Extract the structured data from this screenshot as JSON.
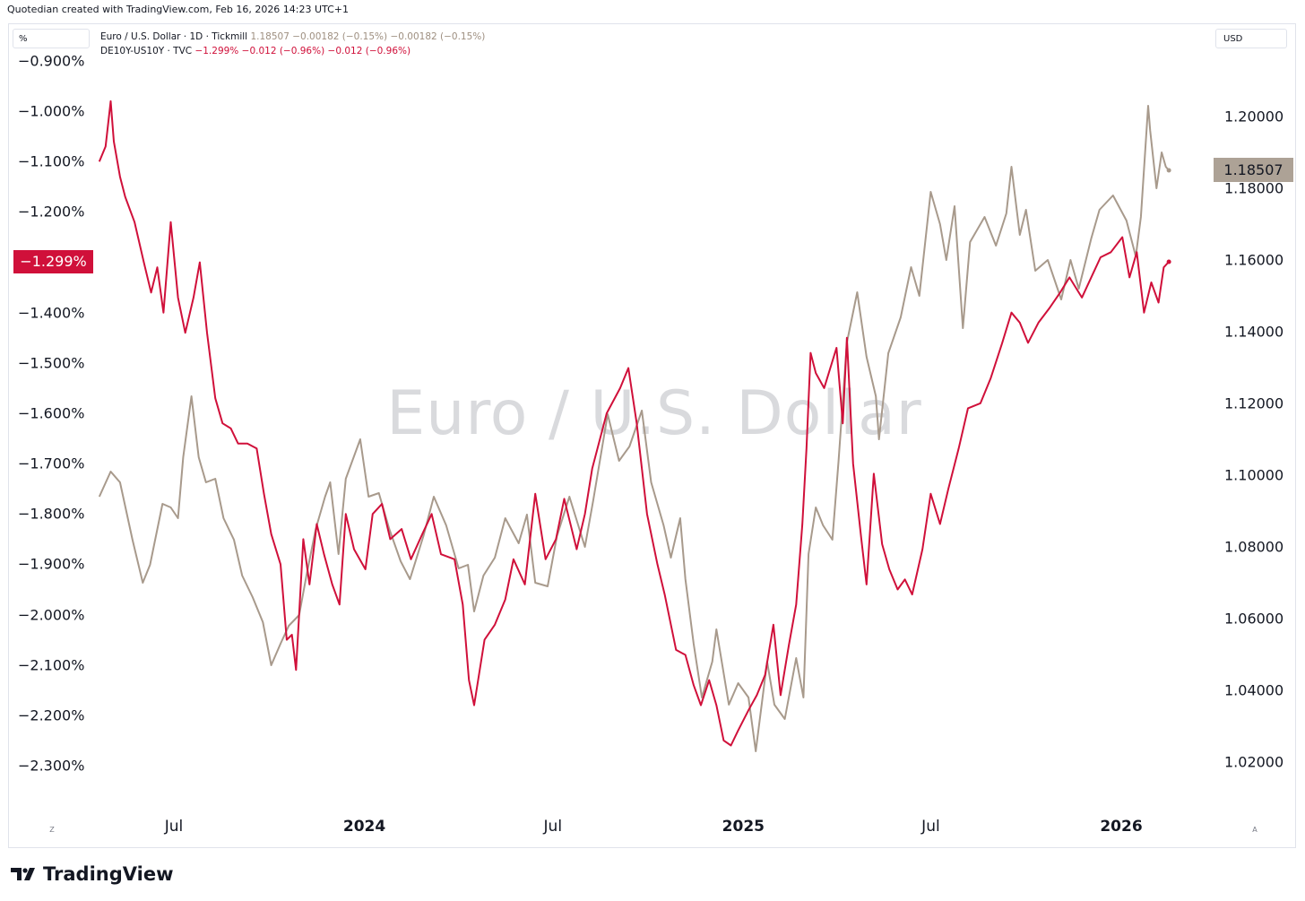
{
  "header": {
    "creator": "Quotedian created with TradingView.com, Feb 16, 2026 14:23 UTC+1"
  },
  "chart_data": {
    "type": "line",
    "watermark": "Euro / U.S. Dollar",
    "left_axis": {
      "unit_label": "%",
      "ticks": [
        "−0.900%",
        "−1.000%",
        "−1.100%",
        "−1.200%",
        "−1.400%",
        "−1.500%",
        "−1.600%",
        "−1.700%",
        "−1.800%",
        "−1.900%",
        "−2.000%",
        "−2.100%",
        "−2.200%",
        "−2.300%"
      ],
      "tick_values": [
        -0.9,
        -1.0,
        -1.1,
        -1.2,
        -1.4,
        -1.5,
        -1.6,
        -1.7,
        -1.8,
        -1.9,
        -2.0,
        -2.1,
        -2.2,
        -2.3
      ],
      "range": [
        -2.35,
        -0.87
      ]
    },
    "right_axis": {
      "unit_label": "USD",
      "ticks": [
        "1.20000",
        "1.18000",
        "1.16000",
        "1.14000",
        "1.12000",
        "1.10000",
        "1.08000",
        "1.06000",
        "1.04000",
        "1.02000"
      ],
      "tick_values": [
        1.2,
        1.18,
        1.16,
        1.14,
        1.12,
        1.1,
        1.08,
        1.06,
        1.04,
        1.02
      ],
      "range": [
        1.0135,
        1.2327
      ]
    },
    "x_axis": {
      "ticks": [
        {
          "label": "Jul",
          "date": "2023-07-01",
          "bold": false
        },
        {
          "label": "2024",
          "date": "2024-01-01",
          "bold": true
        },
        {
          "label": "Jul",
          "date": "2024-07-01",
          "bold": false
        },
        {
          "label": "2025",
          "date": "2025-01-01",
          "bold": true
        },
        {
          "label": "Jul",
          "date": "2025-07-01",
          "bold": false
        },
        {
          "label": "2026",
          "date": "2026-01-01",
          "bold": true
        }
      ],
      "range": [
        "2023-04-20",
        "2026-04-20"
      ]
    },
    "series": [
      {
        "name": "Euro / U.S. Dollar · 1D · Tickmill",
        "axis": "right",
        "color": "#a89a8c",
        "last_value": "1.18507",
        "change": "−0.00182 (−0.15%)",
        "change2": "−0.00182 (−0.15%)",
        "points": [
          [
            "2023-04-20",
            1.094
          ],
          [
            "2023-05-01",
            1.101
          ],
          [
            "2023-05-10",
            1.098
          ],
          [
            "2023-05-22",
            1.082
          ],
          [
            "2023-06-01",
            1.07
          ],
          [
            "2023-06-08",
            1.075
          ],
          [
            "2023-06-20",
            1.092
          ],
          [
            "2023-06-28",
            1.091
          ],
          [
            "2023-07-05",
            1.088
          ],
          [
            "2023-07-10",
            1.105
          ],
          [
            "2023-07-18",
            1.122
          ],
          [
            "2023-07-25",
            1.105
          ],
          [
            "2023-08-01",
            1.098
          ],
          [
            "2023-08-10",
            1.099
          ],
          [
            "2023-08-18",
            1.088
          ],
          [
            "2023-08-28",
            1.082
          ],
          [
            "2023-09-05",
            1.072
          ],
          [
            "2023-09-15",
            1.066
          ],
          [
            "2023-09-25",
            1.059
          ],
          [
            "2023-10-03",
            1.047
          ],
          [
            "2023-10-12",
            1.053
          ],
          [
            "2023-10-20",
            1.058
          ],
          [
            "2023-10-30",
            1.061
          ],
          [
            "2023-11-06",
            1.072
          ],
          [
            "2023-11-15",
            1.085
          ],
          [
            "2023-11-24",
            1.094
          ],
          [
            "2023-11-29",
            1.098
          ],
          [
            "2023-12-07",
            1.078
          ],
          [
            "2023-12-14",
            1.099
          ],
          [
            "2023-12-28",
            1.11
          ],
          [
            "2024-01-05",
            1.094
          ],
          [
            "2024-01-15",
            1.095
          ],
          [
            "2024-01-25",
            1.085
          ],
          [
            "2024-02-05",
            1.076
          ],
          [
            "2024-02-14",
            1.071
          ],
          [
            "2024-02-27",
            1.083
          ],
          [
            "2024-03-08",
            1.094
          ],
          [
            "2024-03-20",
            1.086
          ],
          [
            "2024-04-01",
            1.074
          ],
          [
            "2024-04-10",
            1.075
          ],
          [
            "2024-04-16",
            1.062
          ],
          [
            "2024-04-25",
            1.072
          ],
          [
            "2024-05-06",
            1.077
          ],
          [
            "2024-05-16",
            1.088
          ],
          [
            "2024-05-29",
            1.081
          ],
          [
            "2024-06-06",
            1.089
          ],
          [
            "2024-06-14",
            1.07
          ],
          [
            "2024-06-26",
            1.069
          ],
          [
            "2024-07-05",
            1.083
          ],
          [
            "2024-07-17",
            1.094
          ],
          [
            "2024-08-01",
            1.08
          ],
          [
            "2024-08-09",
            1.093
          ],
          [
            "2024-08-23",
            1.117
          ],
          [
            "2024-09-03",
            1.104
          ],
          [
            "2024-09-13",
            1.108
          ],
          [
            "2024-09-25",
            1.118
          ],
          [
            "2024-10-04",
            1.098
          ],
          [
            "2024-10-16",
            1.086
          ],
          [
            "2024-10-23",
            1.077
          ],
          [
            "2024-11-01",
            1.088
          ],
          [
            "2024-11-06",
            1.071
          ],
          [
            "2024-11-14",
            1.053
          ],
          [
            "2024-11-22",
            1.038
          ],
          [
            "2024-12-02",
            1.048
          ],
          [
            "2024-12-06",
            1.057
          ],
          [
            "2024-12-18",
            1.036
          ],
          [
            "2024-12-27",
            1.042
          ],
          [
            "2025-01-06",
            1.038
          ],
          [
            "2025-01-13",
            1.023
          ],
          [
            "2025-01-24",
            1.048
          ],
          [
            "2025-01-31",
            1.036
          ],
          [
            "2025-02-10",
            1.032
          ],
          [
            "2025-02-21",
            1.049
          ],
          [
            "2025-02-28",
            1.038
          ],
          [
            "2025-03-05",
            1.078
          ],
          [
            "2025-03-12",
            1.091
          ],
          [
            "2025-03-19",
            1.086
          ],
          [
            "2025-03-28",
            1.082
          ],
          [
            "2025-04-03",
            1.104
          ],
          [
            "2025-04-11",
            1.137
          ],
          [
            "2025-04-21",
            1.151
          ],
          [
            "2025-04-30",
            1.133
          ],
          [
            "2025-05-09",
            1.122
          ],
          [
            "2025-05-12",
            1.11
          ],
          [
            "2025-05-21",
            1.134
          ],
          [
            "2025-06-02",
            1.144
          ],
          [
            "2025-06-12",
            1.158
          ],
          [
            "2025-06-20",
            1.15
          ],
          [
            "2025-07-01",
            1.179
          ],
          [
            "2025-07-10",
            1.17
          ],
          [
            "2025-07-16",
            1.16
          ],
          [
            "2025-07-24",
            1.175
          ],
          [
            "2025-08-01",
            1.141
          ],
          [
            "2025-08-08",
            1.165
          ],
          [
            "2025-08-22",
            1.172
          ],
          [
            "2025-09-02",
            1.164
          ],
          [
            "2025-09-12",
            1.173
          ],
          [
            "2025-09-17",
            1.186
          ],
          [
            "2025-09-25",
            1.167
          ],
          [
            "2025-10-01",
            1.174
          ],
          [
            "2025-10-10",
            1.157
          ],
          [
            "2025-10-22",
            1.16
          ],
          [
            "2025-11-04",
            1.149
          ],
          [
            "2025-11-13",
            1.16
          ],
          [
            "2025-11-21",
            1.152
          ],
          [
            "2025-12-03",
            1.166
          ],
          [
            "2025-12-11",
            1.174
          ],
          [
            "2025-12-24",
            1.178
          ],
          [
            "2026-01-06",
            1.171
          ],
          [
            "2026-01-15",
            1.161
          ],
          [
            "2026-01-20",
            1.172
          ],
          [
            "2026-01-27",
            1.203
          ],
          [
            "2026-01-29",
            1.196
          ],
          [
            "2026-02-04",
            1.18
          ],
          [
            "2026-02-09",
            1.19
          ],
          [
            "2026-02-13",
            1.186
          ],
          [
            "2026-02-16",
            1.185
          ]
        ]
      },
      {
        "name": "DE10Y-US10Y · TVC",
        "axis": "left",
        "color": "#d0103a",
        "last_value": "−1.299%",
        "change": "−0.012 (−0.96%)",
        "change2": "−0.012 (−0.96%)",
        "points": [
          [
            "2023-04-20",
            -1.1
          ],
          [
            "2023-04-26",
            -1.07
          ],
          [
            "2023-05-01",
            -0.98
          ],
          [
            "2023-05-04",
            -1.06
          ],
          [
            "2023-05-10",
            -1.13
          ],
          [
            "2023-05-15",
            -1.17
          ],
          [
            "2023-05-24",
            -1.22
          ],
          [
            "2023-06-02",
            -1.3
          ],
          [
            "2023-06-09",
            -1.36
          ],
          [
            "2023-06-15",
            -1.31
          ],
          [
            "2023-06-21",
            -1.4
          ],
          [
            "2023-06-28",
            -1.22
          ],
          [
            "2023-07-05",
            -1.37
          ],
          [
            "2023-07-12",
            -1.44
          ],
          [
            "2023-07-20",
            -1.37
          ],
          [
            "2023-07-26",
            -1.3
          ],
          [
            "2023-08-02",
            -1.44
          ],
          [
            "2023-08-10",
            -1.57
          ],
          [
            "2023-08-17",
            -1.62
          ],
          [
            "2023-08-25",
            -1.63
          ],
          [
            "2023-09-01",
            -1.66
          ],
          [
            "2023-09-10",
            -1.66
          ],
          [
            "2023-09-19",
            -1.67
          ],
          [
            "2023-09-26",
            -1.76
          ],
          [
            "2023-10-03",
            -1.84
          ],
          [
            "2023-10-12",
            -1.9
          ],
          [
            "2023-10-18",
            -2.05
          ],
          [
            "2023-10-23",
            -2.04
          ],
          [
            "2023-10-27",
            -2.11
          ],
          [
            "2023-11-03",
            -1.85
          ],
          [
            "2023-11-09",
            -1.94
          ],
          [
            "2023-11-16",
            -1.82
          ],
          [
            "2023-11-23",
            -1.88
          ],
          [
            "2023-12-01",
            -1.94
          ],
          [
            "2023-12-08",
            -1.98
          ],
          [
            "2023-12-14",
            -1.8
          ],
          [
            "2023-12-22",
            -1.87
          ],
          [
            "2024-01-02",
            -1.91
          ],
          [
            "2024-01-09",
            -1.8
          ],
          [
            "2024-01-18",
            -1.78
          ],
          [
            "2024-01-26",
            -1.85
          ],
          [
            "2024-02-06",
            -1.83
          ],
          [
            "2024-02-15",
            -1.89
          ],
          [
            "2024-02-26",
            -1.84
          ],
          [
            "2024-03-06",
            -1.8
          ],
          [
            "2024-03-15",
            -1.88
          ],
          [
            "2024-03-28",
            -1.89
          ],
          [
            "2024-04-05",
            -1.98
          ],
          [
            "2024-04-11",
            -2.13
          ],
          [
            "2024-04-16",
            -2.18
          ],
          [
            "2024-04-26",
            -2.05
          ],
          [
            "2024-05-06",
            -2.02
          ],
          [
            "2024-05-16",
            -1.97
          ],
          [
            "2024-05-24",
            -1.89
          ],
          [
            "2024-06-04",
            -1.94
          ],
          [
            "2024-06-14",
            -1.76
          ],
          [
            "2024-06-24",
            -1.89
          ],
          [
            "2024-07-04",
            -1.85
          ],
          [
            "2024-07-12",
            -1.77
          ],
          [
            "2024-07-24",
            -1.87
          ],
          [
            "2024-08-01",
            -1.8
          ],
          [
            "2024-08-08",
            -1.71
          ],
          [
            "2024-08-22",
            -1.6
          ],
          [
            "2024-09-04",
            -1.55
          ],
          [
            "2024-09-12",
            -1.51
          ],
          [
            "2024-09-20",
            -1.62
          ],
          [
            "2024-09-30",
            -1.8
          ],
          [
            "2024-10-10",
            -1.9
          ],
          [
            "2024-10-17",
            -1.96
          ],
          [
            "2024-10-28",
            -2.07
          ],
          [
            "2024-11-06",
            -2.08
          ],
          [
            "2024-11-14",
            -2.14
          ],
          [
            "2024-11-21",
            -2.18
          ],
          [
            "2024-11-29",
            -2.13
          ],
          [
            "2024-12-06",
            -2.18
          ],
          [
            "2024-12-13",
            -2.25
          ],
          [
            "2024-12-20",
            -2.26
          ],
          [
            "2024-12-27",
            -2.23
          ],
          [
            "2025-01-06",
            -2.19
          ],
          [
            "2025-01-14",
            -2.16
          ],
          [
            "2025-01-22",
            -2.12
          ],
          [
            "2025-01-30",
            -2.02
          ],
          [
            "2025-02-06",
            -2.16
          ],
          [
            "2025-02-14",
            -2.06
          ],
          [
            "2025-02-21",
            -1.98
          ],
          [
            "2025-02-27",
            -1.82
          ],
          [
            "2025-03-03",
            -1.67
          ],
          [
            "2025-03-07",
            -1.48
          ],
          [
            "2025-03-12",
            -1.52
          ],
          [
            "2025-03-20",
            -1.55
          ],
          [
            "2025-04-01",
            -1.47
          ],
          [
            "2025-04-07",
            -1.62
          ],
          [
            "2025-04-11",
            -1.45
          ],
          [
            "2025-04-17",
            -1.7
          ],
          [
            "2025-04-25",
            -1.85
          ],
          [
            "2025-04-30",
            -1.94
          ],
          [
            "2025-05-07",
            -1.72
          ],
          [
            "2025-05-15",
            -1.86
          ],
          [
            "2025-05-22",
            -1.91
          ],
          [
            "2025-05-30",
            -1.95
          ],
          [
            "2025-06-06",
            -1.93
          ],
          [
            "2025-06-13",
            -1.96
          ],
          [
            "2025-06-23",
            -1.87
          ],
          [
            "2025-07-01",
            -1.76
          ],
          [
            "2025-07-10",
            -1.82
          ],
          [
            "2025-07-18",
            -1.75
          ],
          [
            "2025-07-28",
            -1.67
          ],
          [
            "2025-08-06",
            -1.59
          ],
          [
            "2025-08-18",
            -1.58
          ],
          [
            "2025-08-28",
            -1.53
          ],
          [
            "2025-09-08",
            -1.46
          ],
          [
            "2025-09-17",
            -1.4
          ],
          [
            "2025-09-25",
            -1.42
          ],
          [
            "2025-10-03",
            -1.46
          ],
          [
            "2025-10-13",
            -1.42
          ],
          [
            "2025-10-24",
            -1.39
          ],
          [
            "2025-11-03",
            -1.36
          ],
          [
            "2025-11-12",
            -1.33
          ],
          [
            "2025-11-24",
            -1.37
          ],
          [
            "2025-12-03",
            -1.33
          ],
          [
            "2025-12-12",
            -1.29
          ],
          [
            "2025-12-22",
            -1.28
          ],
          [
            "2026-01-02",
            -1.25
          ],
          [
            "2026-01-09",
            -1.33
          ],
          [
            "2026-01-16",
            -1.28
          ],
          [
            "2026-01-23",
            -1.4
          ],
          [
            "2026-01-30",
            -1.34
          ],
          [
            "2026-02-06",
            -1.38
          ],
          [
            "2026-02-11",
            -1.31
          ],
          [
            "2026-02-16",
            -1.299
          ]
        ]
      }
    ]
  },
  "footer": {
    "brand": "TradingView",
    "left_button": "Z",
    "right_button": "A"
  }
}
